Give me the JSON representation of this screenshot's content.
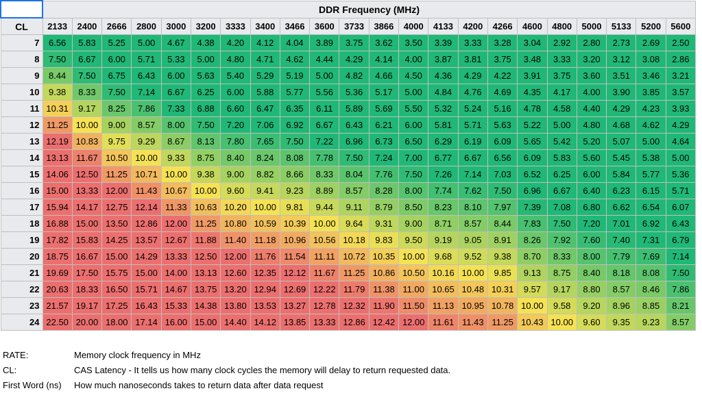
{
  "title": "DDR Frequency (MHz)",
  "cl_label": "CL",
  "frequencies": [
    "2133",
    "2400",
    "2666",
    "2800",
    "3000",
    "3200",
    "3333",
    "3400",
    "3466",
    "3600",
    "3733",
    "3866",
    "4000",
    "4133",
    "4200",
    "4266",
    "4600",
    "4800",
    "5000",
    "5133",
    "5200",
    "5600"
  ],
  "rows": [
    {
      "cl": "7",
      "values": [
        "6.56",
        "5.83",
        "5.25",
        "5.00",
        "4.67",
        "4.38",
        "4.20",
        "4.12",
        "4.04",
        "3.89",
        "3.75",
        "3.62",
        "3.50",
        "3.39",
        "3.33",
        "3.28",
        "3.04",
        "2.92",
        "2.80",
        "2.73",
        "2.69",
        "2.50"
      ]
    },
    {
      "cl": "8",
      "values": [
        "7.50",
        "6.67",
        "6.00",
        "5.71",
        "5.33",
        "5.00",
        "4.80",
        "4.71",
        "4.62",
        "4.44",
        "4.29",
        "4.14",
        "4.00",
        "3.87",
        "3.81",
        "3.75",
        "3.48",
        "3.33",
        "3.20",
        "3.12",
        "3.08",
        "2.86"
      ]
    },
    {
      "cl": "9",
      "values": [
        "8.44",
        "7.50",
        "6.75",
        "6.43",
        "6.00",
        "5.63",
        "5.40",
        "5.29",
        "5.19",
        "5.00",
        "4.82",
        "4.66",
        "4.50",
        "4.36",
        "4.29",
        "4.22",
        "3.91",
        "3.75",
        "3.60",
        "3.51",
        "3.46",
        "3.21"
      ]
    },
    {
      "cl": "10",
      "values": [
        "9.38",
        "8.33",
        "7.50",
        "7.14",
        "6.67",
        "6.25",
        "6.00",
        "5.88",
        "5.77",
        "5.56",
        "5.36",
        "5.17",
        "5.00",
        "4.84",
        "4.76",
        "4.69",
        "4.35",
        "4.17",
        "4.00",
        "3.90",
        "3.85",
        "3.57"
      ]
    },
    {
      "cl": "11",
      "values": [
        "10.31",
        "9.17",
        "8.25",
        "7.86",
        "7.33",
        "6.88",
        "6.60",
        "6.47",
        "6.35",
        "6.11",
        "5.89",
        "5.69",
        "5.50",
        "5.32",
        "5.24",
        "5.16",
        "4.78",
        "4.58",
        "4.40",
        "4.29",
        "4.23",
        "3.93"
      ]
    },
    {
      "cl": "12",
      "values": [
        "11.25",
        "10.00",
        "9.00",
        "8.57",
        "8.00",
        "7.50",
        "7.20",
        "7.06",
        "6.92",
        "6.67",
        "6.43",
        "6.21",
        "6.00",
        "5.81",
        "5.71",
        "5.63",
        "5.22",
        "5.00",
        "4.80",
        "4.68",
        "4.62",
        "4.29"
      ]
    },
    {
      "cl": "13",
      "values": [
        "12.19",
        "10.83",
        "9.75",
        "9.29",
        "8.67",
        "8.13",
        "7.80",
        "7.65",
        "7.50",
        "7.22",
        "6.96",
        "6.73",
        "6.50",
        "6.29",
        "6.19",
        "6.09",
        "5.65",
        "5.42",
        "5.20",
        "5.07",
        "5.00",
        "4.64"
      ]
    },
    {
      "cl": "14",
      "values": [
        "13.13",
        "11.67",
        "10.50",
        "10.00",
        "9.33",
        "8.75",
        "8.40",
        "8.24",
        "8.08",
        "7.78",
        "7.50",
        "7.24",
        "7.00",
        "6.77",
        "6.67",
        "6.56",
        "6.09",
        "5.83",
        "5.60",
        "5.45",
        "5.38",
        "5.00"
      ]
    },
    {
      "cl": "15",
      "values": [
        "14.06",
        "12.50",
        "11.25",
        "10.71",
        "10.00",
        "9.38",
        "9.00",
        "8.82",
        "8.66",
        "8.33",
        "8.04",
        "7.76",
        "7.50",
        "7.26",
        "7.14",
        "7.03",
        "6.52",
        "6.25",
        "6.00",
        "5.84",
        "5.77",
        "5.36"
      ]
    },
    {
      "cl": "16",
      "values": [
        "15.00",
        "13.33",
        "12.00",
        "11.43",
        "10.67",
        "10.00",
        "9.60",
        "9.41",
        "9.23",
        "8.89",
        "8.57",
        "8.28",
        "8.00",
        "7.74",
        "7.62",
        "7.50",
        "6.96",
        "6.67",
        "6.40",
        "6.23",
        "6.15",
        "5.71"
      ]
    },
    {
      "cl": "17",
      "values": [
        "15.94",
        "14.17",
        "12.75",
        "12.14",
        "11.33",
        "10.63",
        "10.20",
        "10.00",
        "9.81",
        "9.44",
        "9.11",
        "8.79",
        "8.50",
        "8.23",
        "8.10",
        "7.97",
        "7.39",
        "7.08",
        "6.80",
        "6.62",
        "6.54",
        "6.07"
      ]
    },
    {
      "cl": "18",
      "values": [
        "16.88",
        "15.00",
        "13.50",
        "12.86",
        "12.00",
        "11.25",
        "10.80",
        "10.59",
        "10.39",
        "10.00",
        "9.64",
        "9.31",
        "9.00",
        "8.71",
        "8.57",
        "8.44",
        "7.83",
        "7.50",
        "7.20",
        "7.01",
        "6.92",
        "6.43"
      ]
    },
    {
      "cl": "19",
      "values": [
        "17.82",
        "15.83",
        "14.25",
        "13.57",
        "12.67",
        "11.88",
        "11.40",
        "11.18",
        "10.96",
        "10.56",
        "10.18",
        "9.83",
        "9.50",
        "9.19",
        "9.05",
        "8.91",
        "8.26",
        "7.92",
        "7.60",
        "7.40",
        "7.31",
        "6.79"
      ]
    },
    {
      "cl": "20",
      "values": [
        "18.75",
        "16.67",
        "15.00",
        "14.29",
        "13.33",
        "12.50",
        "12.00",
        "11.76",
        "11.54",
        "11.11",
        "10.72",
        "10.35",
        "10.00",
        "9.68",
        "9.52",
        "9.38",
        "8.70",
        "8.33",
        "8.00",
        "7.79",
        "7.69",
        "7.14"
      ]
    },
    {
      "cl": "21",
      "values": [
        "19.69",
        "17.50",
        "15.75",
        "15.00",
        "14.00",
        "13.13",
        "12.60",
        "12.35",
        "12.12",
        "11.67",
        "11.25",
        "10.86",
        "10.50",
        "10.16",
        "10.00",
        "9.85",
        "9.13",
        "8.75",
        "8.40",
        "8.18",
        "8.08",
        "7.50"
      ]
    },
    {
      "cl": "22",
      "values": [
        "20.63",
        "18.33",
        "16.50",
        "15.71",
        "14.67",
        "13.75",
        "13.20",
        "12.94",
        "12.69",
        "12.22",
        "11.79",
        "11.38",
        "11.00",
        "10.65",
        "10.48",
        "10.31",
        "9.57",
        "9.17",
        "8.80",
        "8.57",
        "8.46",
        "7.86"
      ]
    },
    {
      "cl": "23",
      "values": [
        "21.57",
        "19.17",
        "17.25",
        "16.43",
        "15.33",
        "14.38",
        "13.80",
        "13.53",
        "13.27",
        "12.78",
        "12.32",
        "11.90",
        "11.50",
        "11.13",
        "10.95",
        "10.78",
        "10.00",
        "9.58",
        "9.20",
        "8.96",
        "8.85",
        "8.21"
      ]
    },
    {
      "cl": "24",
      "values": [
        "22.50",
        "20.00",
        "18.00",
        "17.14",
        "16.00",
        "15.00",
        "14.40",
        "14.12",
        "13.85",
        "13.33",
        "12.86",
        "12.42",
        "12.00",
        "11.61",
        "11.43",
        "11.25",
        "10.43",
        "10.00",
        "9.60",
        "9.35",
        "9.23",
        "8.57"
      ]
    }
  ],
  "legend": [
    {
      "term": "RATE:",
      "definition": "Memory clock frequency in MHz"
    },
    {
      "term": "CL:",
      "definition": "CAS Latency - It tells us how many clock cycles the memory will delay to return requested data."
    },
    {
      "term": "First Word (ns)",
      "definition": "How much nanoseconds takes to return data after data request"
    }
  ],
  "colors": {
    "low": "#1fb877",
    "mid": "#f5e254",
    "high": "#ec6f6f",
    "header_bg": "#e8eaed",
    "selection": "#1a73e8"
  }
}
